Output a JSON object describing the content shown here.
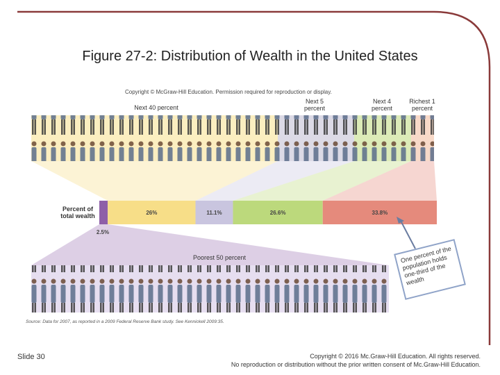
{
  "slide": {
    "title": "Figure 27-2: Distribution of Wealth in the United States",
    "number": "Slide 30",
    "footer": [
      "Copyright © 2016 Mc.Graw-Hill Education. All rights reserved.",
      "No reproduction or distribution without the prior written consent of Mc.Graw-Hill Education."
    ]
  },
  "chart_data": {
    "type": "stacked-bar",
    "copyright": "Copyright © McGraw-Hill Education. Permission required for reproduction or display.",
    "axis_label": "Percent of total wealth",
    "categories": [
      "Poorest 50 percent",
      "Next 40 percent",
      "Next 5 percent",
      "Next 4 percent",
      "Richest 1 percent"
    ],
    "values": [
      2.5,
      26,
      11.1,
      26.6,
      33.8
    ],
    "value_labels": [
      "2.5%",
      "26%",
      "11.1%",
      "26.6%",
      "33.8%"
    ],
    "colors": [
      "#8e5fa8",
      "#f7de88",
      "#c9c5df",
      "#bcd97c",
      "#e58a7c"
    ],
    "xlim": [
      0,
      100
    ],
    "annotation": "One percent of the population holds one-third of the wealth",
    "source": "Source: Data for 2007, as reported in a 2009 Federal Reserve Bank study. See Kennickell 2009:35."
  }
}
